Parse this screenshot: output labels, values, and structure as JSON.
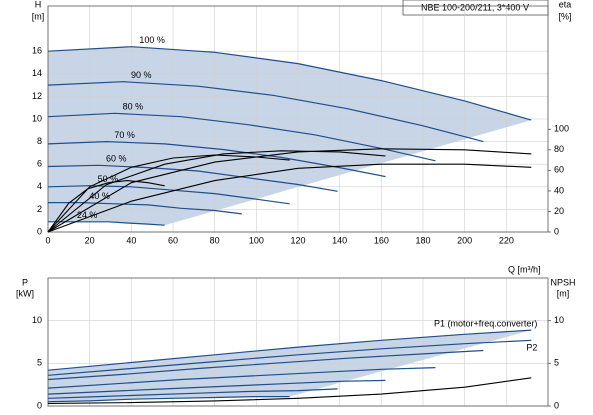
{
  "chart_data": [
    {
      "type": "line",
      "title": "NBE 100-200/211, 3*400 V",
      "ylabel": "H",
      "yunit": "[m]",
      "y2label": "eta",
      "y2unit": "[%]",
      "xlabel": "Q [m³/h]",
      "xlim": [
        0,
        240
      ],
      "xticks": [
        0,
        20,
        40,
        60,
        80,
        100,
        120,
        140,
        160,
        180,
        200,
        220
      ],
      "ylim": [
        0,
        20
      ],
      "yticks": [
        0,
        2,
        4,
        6,
        8,
        10,
        12,
        14,
        16
      ],
      "y2lim": [
        0,
        220
      ],
      "y2ticks": [
        0,
        20,
        40,
        60,
        80,
        100
      ],
      "grid": true,
      "series": [
        {
          "name": "100 %",
          "color": "#1f4e8c",
          "x": [
            0,
            40,
            80,
            120,
            160,
            200,
            232
          ],
          "values": [
            16.0,
            16.4,
            15.9,
            14.9,
            13.4,
            11.6,
            9.9
          ]
        },
        {
          "name": "90 %",
          "color": "#1f4e8c",
          "x": [
            0,
            36,
            72,
            108,
            144,
            180,
            209
          ],
          "values": [
            13.0,
            13.3,
            12.9,
            12.1,
            10.9,
            9.4,
            8.0
          ]
        },
        {
          "name": "80 %",
          "color": "#1f4e8c",
          "x": [
            0,
            32,
            64,
            96,
            128,
            160,
            186
          ],
          "values": [
            10.2,
            10.5,
            10.2,
            9.5,
            8.6,
            7.4,
            6.3
          ]
        },
        {
          "name": "70 %",
          "color": "#1f4e8c",
          "x": [
            0,
            28,
            56,
            84,
            112,
            140,
            162
          ],
          "values": [
            7.8,
            8.0,
            7.8,
            7.3,
            6.6,
            5.7,
            4.9
          ]
        },
        {
          "name": "60 %",
          "color": "#1f4e8c",
          "x": [
            0,
            24,
            48,
            72,
            96,
            120,
            139
          ],
          "values": [
            5.8,
            5.9,
            5.7,
            5.4,
            4.8,
            4.2,
            3.6
          ]
        },
        {
          "name": "50 %",
          "color": "#1f4e8c",
          "x": [
            0,
            20,
            40,
            60,
            80,
            100,
            116
          ],
          "values": [
            4.0,
            4.1,
            4.0,
            3.7,
            3.4,
            2.9,
            2.5
          ]
        },
        {
          "name": "40 %",
          "color": "#1f4e8c",
          "x": [
            0,
            16,
            32,
            48,
            64,
            80,
            93
          ],
          "values": [
            2.6,
            2.6,
            2.5,
            2.4,
            2.1,
            1.9,
            1.6
          ]
        },
        {
          "name": "24 %",
          "color": "#1f4e8c",
          "x": [
            0,
            10,
            19,
            29,
            38,
            48,
            56
          ],
          "values": [
            0.9,
            0.9,
            0.9,
            0.9,
            0.8,
            0.7,
            0.6
          ]
        },
        {
          "color": "#000000",
          "axis": "y2",
          "x": [
            0,
            40,
            80,
            120,
            160,
            200,
            232
          ],
          "values": [
            0,
            48,
            68,
            78,
            81,
            80,
            76
          ]
        },
        {
          "color": "#000000",
          "axis": "y2",
          "x": [
            0,
            28,
            56,
            84,
            112,
            140,
            162
          ],
          "values": [
            0,
            46,
            66,
            76,
            79,
            78,
            74
          ]
        },
        {
          "color": "#000000",
          "axis": "y2",
          "x": [
            0,
            20,
            40,
            60,
            80,
            100,
            116
          ],
          "values": [
            0,
            44,
            63,
            72,
            75,
            73,
            70
          ]
        },
        {
          "color": "#000000",
          "axis": "y2",
          "x": [
            0,
            10,
            19,
            29,
            38,
            48,
            56
          ],
          "values": [
            0,
            28,
            42,
            48,
            50,
            48,
            45
          ]
        },
        {
          "color": "#000000",
          "axis": "y2",
          "x": [
            0,
            40,
            80,
            120,
            160,
            200,
            232
          ],
          "values": [
            0,
            30,
            50,
            62,
            66,
            66,
            63
          ]
        }
      ]
    },
    {
      "type": "line",
      "ylabel": "P",
      "yunit": "[kW]",
      "y2label": "NPSH",
      "y2unit": "[m]",
      "xlim": [
        0,
        240
      ],
      "xticks": [
        0,
        20,
        40,
        60,
        80,
        100,
        120,
        140,
        160,
        180,
        200,
        220
      ],
      "ylim": [
        0,
        15
      ],
      "yticks": [
        0,
        5,
        10
      ],
      "y2lim": [
        0,
        15
      ],
      "y2ticks": [
        0,
        5,
        10
      ],
      "grid": true,
      "series": [
        {
          "name": "P1 (motor+freq.converter)",
          "color": "#1f4e8c",
          "x": [
            0,
            40,
            80,
            120,
            160,
            200,
            232
          ],
          "values": [
            4.2,
            5.1,
            6.0,
            6.9,
            7.7,
            8.4,
            8.9
          ]
        },
        {
          "color": "#1f4e8c",
          "x": [
            0,
            36,
            72,
            108,
            144,
            180,
            209
          ],
          "values": [
            3.1,
            3.7,
            4.4,
            5.0,
            5.6,
            6.1,
            6.5
          ]
        },
        {
          "color": "#1f4e8c",
          "x": [
            0,
            32,
            64,
            96,
            128,
            160,
            186
          ],
          "values": [
            2.1,
            2.6,
            3.1,
            3.5,
            3.9,
            4.3,
            4.5
          ]
        },
        {
          "color": "#1f4e8c",
          "x": [
            0,
            28,
            56,
            84,
            112,
            140,
            162
          ],
          "values": [
            1.4,
            1.7,
            2.0,
            2.3,
            2.6,
            2.9,
            3.0
          ]
        },
        {
          "color": "#1f4e8c",
          "x": [
            0,
            24,
            48,
            72,
            96,
            120,
            139
          ],
          "values": [
            0.9,
            1.1,
            1.3,
            1.5,
            1.7,
            1.8,
            2.0
          ]
        },
        {
          "color": "#1f4e8c",
          "x": [
            0,
            20,
            40,
            60,
            80,
            100,
            116
          ],
          "values": [
            0.5,
            0.6,
            0.8,
            0.9,
            1.0,
            1.1,
            1.1
          ]
        },
        {
          "name": "P2",
          "color": "#1f4e8c",
          "x": [
            0,
            40,
            80,
            120,
            160,
            200,
            232
          ],
          "values": [
            3.6,
            4.4,
            5.2,
            6.0,
            6.7,
            7.3,
            7.7
          ]
        },
        {
          "color": "#000000",
          "axis": "y2",
          "x": [
            0,
            40,
            80,
            120,
            160,
            200,
            232
          ],
          "values": [
            0.3,
            0.4,
            0.6,
            0.9,
            1.4,
            2.2,
            3.3
          ]
        }
      ]
    }
  ]
}
